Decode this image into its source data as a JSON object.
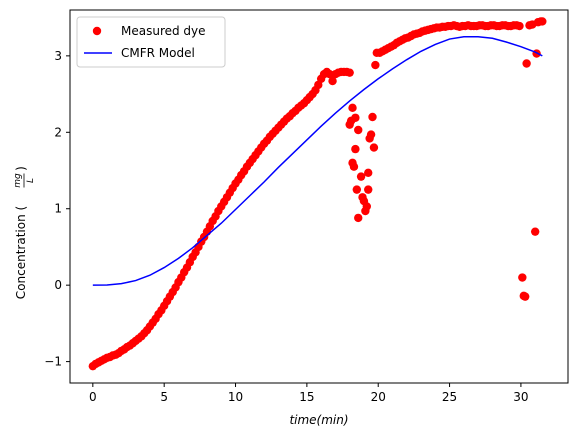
{
  "chart_data": {
    "type": "scatter",
    "title": "",
    "xlabel": "time(min)",
    "ylabel": "Concentration (mg/L)",
    "ylabel_parts": {
      "prefix": "Concentration (",
      "num": "mg",
      "den": "L",
      "suffix": ")"
    },
    "xlim": [
      -1.6,
      33.3
    ],
    "ylim": [
      -1.28,
      3.6
    ],
    "xticks": [
      0,
      5,
      10,
      15,
      20,
      25,
      30
    ],
    "yticks": [
      -1,
      0,
      1,
      2,
      3
    ],
    "grid": false,
    "legend_position": "upper left",
    "series": [
      {
        "name": "Measured dye",
        "kind": "scatter",
        "color": "#ff0000",
        "marker": "circle",
        "points": [
          [
            0.0,
            -1.06
          ],
          [
            0.2,
            -1.03
          ],
          [
            0.4,
            -1.01
          ],
          [
            0.6,
            -0.99
          ],
          [
            0.8,
            -0.97
          ],
          [
            1.0,
            -0.95
          ],
          [
            1.2,
            -0.94
          ],
          [
            1.4,
            -0.92
          ],
          [
            1.6,
            -0.91
          ],
          [
            1.8,
            -0.89
          ],
          [
            2.0,
            -0.86
          ],
          [
            2.2,
            -0.84
          ],
          [
            2.4,
            -0.81
          ],
          [
            2.6,
            -0.79
          ],
          [
            2.8,
            -0.76
          ],
          [
            3.0,
            -0.73
          ],
          [
            3.2,
            -0.7
          ],
          [
            3.4,
            -0.67
          ],
          [
            3.6,
            -0.63
          ],
          [
            3.8,
            -0.59
          ],
          [
            4.0,
            -0.54
          ],
          [
            4.2,
            -0.49
          ],
          [
            4.4,
            -0.44
          ],
          [
            4.6,
            -0.38
          ],
          [
            4.8,
            -0.33
          ],
          [
            5.0,
            -0.27
          ],
          [
            5.2,
            -0.21
          ],
          [
            5.4,
            -0.15
          ],
          [
            5.6,
            -0.09
          ],
          [
            5.8,
            -0.03
          ],
          [
            6.0,
            0.04
          ],
          [
            6.2,
            0.1
          ],
          [
            6.4,
            0.17
          ],
          [
            6.6,
            0.23
          ],
          [
            6.8,
            0.3
          ],
          [
            7.0,
            0.37
          ],
          [
            7.2,
            0.43
          ],
          [
            7.4,
            0.5
          ],
          [
            7.6,
            0.57
          ],
          [
            7.8,
            0.63
          ],
          [
            8.0,
            0.7
          ],
          [
            8.2,
            0.77
          ],
          [
            8.4,
            0.84
          ],
          [
            8.6,
            0.9
          ],
          [
            8.8,
            0.97
          ],
          [
            9.0,
            1.03
          ],
          [
            9.2,
            1.09
          ],
          [
            9.4,
            1.15
          ],
          [
            9.6,
            1.21
          ],
          [
            9.8,
            1.27
          ],
          [
            10.0,
            1.33
          ],
          [
            10.2,
            1.38
          ],
          [
            10.4,
            1.44
          ],
          [
            10.6,
            1.49
          ],
          [
            10.8,
            1.55
          ],
          [
            11.0,
            1.6
          ],
          [
            11.2,
            1.65
          ],
          [
            11.4,
            1.7
          ],
          [
            11.6,
            1.75
          ],
          [
            11.8,
            1.8
          ],
          [
            12.0,
            1.85
          ],
          [
            12.2,
            1.89
          ],
          [
            12.4,
            1.94
          ],
          [
            12.6,
            1.98
          ],
          [
            12.8,
            2.02
          ],
          [
            13.0,
            2.06
          ],
          [
            13.2,
            2.1
          ],
          [
            13.4,
            2.14
          ],
          [
            13.6,
            2.18
          ],
          [
            13.8,
            2.21
          ],
          [
            14.0,
            2.25
          ],
          [
            14.2,
            2.28
          ],
          [
            14.4,
            2.32
          ],
          [
            14.6,
            2.35
          ],
          [
            14.8,
            2.38
          ],
          [
            15.0,
            2.42
          ],
          [
            15.2,
            2.46
          ],
          [
            15.4,
            2.5
          ],
          [
            15.6,
            2.55
          ],
          [
            15.8,
            2.62
          ],
          [
            16.0,
            2.7
          ],
          [
            16.2,
            2.76
          ],
          [
            16.4,
            2.79
          ],
          [
            16.6,
            2.76
          ],
          [
            16.8,
            2.67
          ],
          [
            17.0,
            2.76
          ],
          [
            17.2,
            2.78
          ],
          [
            17.4,
            2.79
          ],
          [
            17.6,
            2.79
          ],
          [
            17.8,
            2.79
          ],
          [
            18.0,
            2.78
          ],
          [
            18.0,
            2.1
          ],
          [
            18.1,
            2.15
          ],
          [
            18.2,
            2.32
          ],
          [
            18.3,
            1.55
          ],
          [
            18.2,
            1.6
          ],
          [
            18.4,
            2.19
          ],
          [
            18.4,
            1.78
          ],
          [
            18.5,
            1.25
          ],
          [
            18.6,
            2.03
          ],
          [
            18.6,
            0.88
          ],
          [
            18.8,
            1.42
          ],
          [
            18.9,
            1.15
          ],
          [
            19.0,
            1.1
          ],
          [
            19.1,
            0.97
          ],
          [
            19.2,
            1.03
          ],
          [
            19.3,
            1.25
          ],
          [
            19.3,
            1.47
          ],
          [
            19.4,
            1.92
          ],
          [
            19.5,
            1.97
          ],
          [
            19.6,
            2.2
          ],
          [
            19.7,
            1.8
          ],
          [
            19.8,
            2.88
          ],
          [
            19.9,
            3.04
          ],
          [
            20.1,
            3.04
          ],
          [
            20.3,
            3.06
          ],
          [
            20.5,
            3.08
          ],
          [
            20.7,
            3.1
          ],
          [
            20.9,
            3.12
          ],
          [
            21.1,
            3.14
          ],
          [
            21.3,
            3.17
          ],
          [
            21.5,
            3.19
          ],
          [
            21.7,
            3.21
          ],
          [
            21.9,
            3.23
          ],
          [
            22.1,
            3.24
          ],
          [
            22.3,
            3.26
          ],
          [
            22.5,
            3.28
          ],
          [
            22.7,
            3.29
          ],
          [
            22.9,
            3.3
          ],
          [
            23.1,
            3.32
          ],
          [
            23.3,
            3.33
          ],
          [
            23.5,
            3.34
          ],
          [
            23.7,
            3.35
          ],
          [
            23.9,
            3.36
          ],
          [
            24.1,
            3.37
          ],
          [
            24.3,
            3.37
          ],
          [
            24.5,
            3.38
          ],
          [
            24.7,
            3.38
          ],
          [
            24.9,
            3.39
          ],
          [
            25.1,
            3.39
          ],
          [
            25.3,
            3.4
          ],
          [
            25.5,
            3.39
          ],
          [
            25.7,
            3.38
          ],
          [
            25.9,
            3.39
          ],
          [
            26.1,
            3.39
          ],
          [
            26.3,
            3.4
          ],
          [
            26.5,
            3.39
          ],
          [
            26.7,
            3.39
          ],
          [
            26.9,
            3.39
          ],
          [
            27.1,
            3.4
          ],
          [
            27.3,
            3.4
          ],
          [
            27.5,
            3.39
          ],
          [
            27.7,
            3.39
          ],
          [
            27.9,
            3.4
          ],
          [
            28.1,
            3.4
          ],
          [
            28.3,
            3.39
          ],
          [
            28.5,
            3.39
          ],
          [
            28.7,
            3.4
          ],
          [
            28.9,
            3.4
          ],
          [
            29.1,
            3.39
          ],
          [
            29.3,
            3.39
          ],
          [
            29.5,
            3.4
          ],
          [
            29.7,
            3.4
          ],
          [
            29.9,
            3.39
          ],
          [
            30.1,
            0.1
          ],
          [
            30.2,
            -0.14
          ],
          [
            30.3,
            -0.15
          ],
          [
            30.4,
            2.9
          ],
          [
            30.6,
            3.4
          ],
          [
            30.8,
            3.41
          ],
          [
            31.0,
            0.7
          ],
          [
            31.1,
            3.03
          ],
          [
            31.2,
            3.44
          ],
          [
            31.4,
            3.45
          ],
          [
            31.5,
            3.45
          ]
        ]
      },
      {
        "name": "CMFR Model",
        "kind": "line",
        "color": "#0000ff",
        "x": [
          0,
          1,
          2,
          3,
          4,
          5,
          6,
          7,
          8,
          9,
          10,
          11,
          12,
          13,
          14,
          15,
          16,
          17,
          18,
          19,
          20,
          21,
          22,
          23,
          24,
          25,
          26,
          27,
          28,
          29,
          30,
          31,
          31.5
        ],
        "y": [
          0.0,
          0.002,
          0.02,
          0.06,
          0.13,
          0.23,
          0.35,
          0.49,
          0.65,
          0.81,
          0.99,
          1.17,
          1.35,
          1.54,
          1.72,
          1.9,
          2.08,
          2.25,
          2.41,
          2.56,
          2.7,
          2.83,
          2.95,
          3.06,
          3.15,
          3.22,
          3.25,
          3.25,
          3.23,
          3.18,
          3.12,
          3.05,
          3.0
        ]
      }
    ]
  }
}
